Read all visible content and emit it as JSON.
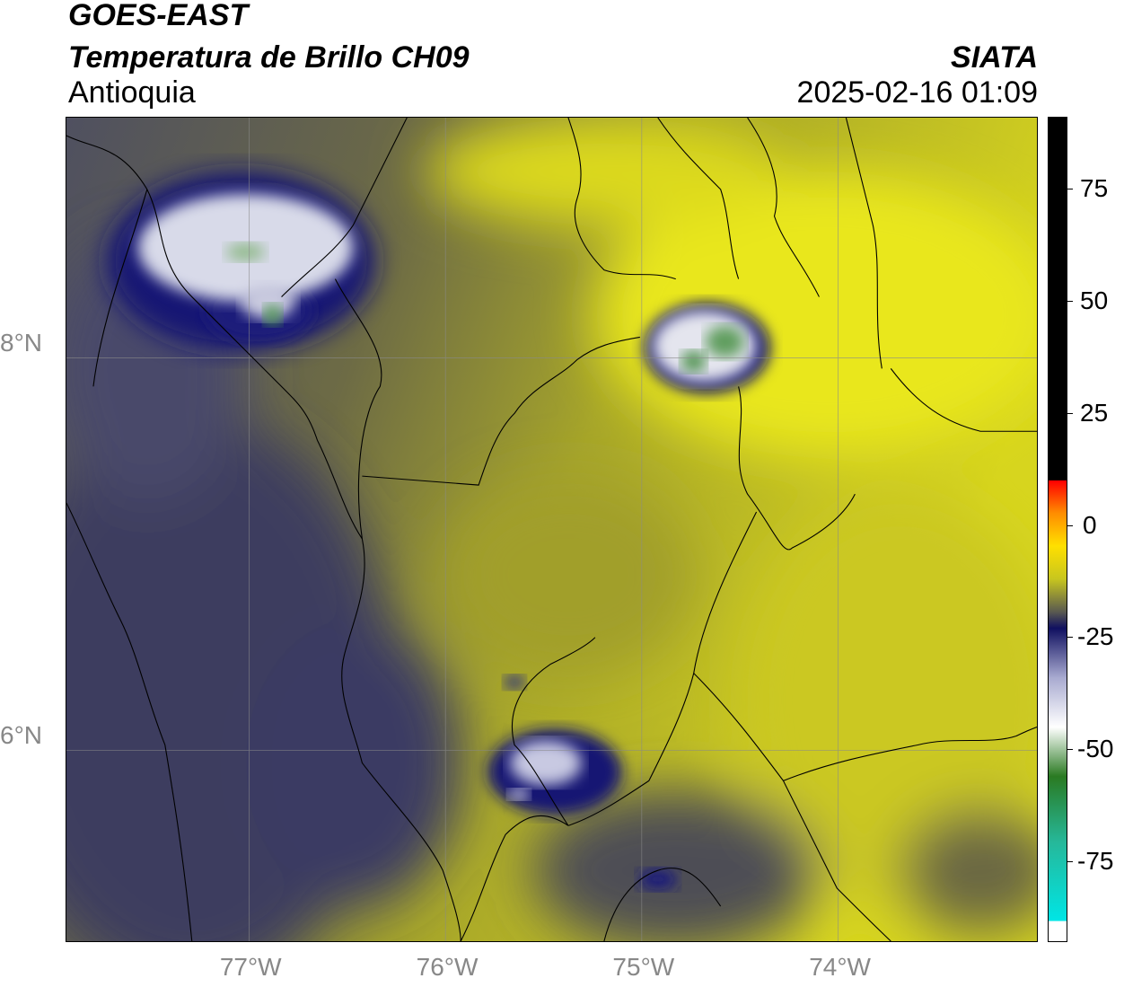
{
  "header": {
    "satellite": "GOES-EAST",
    "product": "Temperatura de Brillo CH09",
    "region": "Antioquia",
    "organization": "SIATA",
    "timestamp": "2025-02-16 01:09"
  },
  "map": {
    "lon_range": [
      -77.95,
      -73.0
    ],
    "lat_range": [
      4.95,
      9.15
    ],
    "lon_ticks": [
      {
        "value": -77,
        "label": "77°W"
      },
      {
        "value": -76,
        "label": "76°W"
      },
      {
        "value": -75,
        "label": "75°W"
      },
      {
        "value": -74,
        "label": "74°W"
      }
    ],
    "lat_ticks": [
      {
        "value": 8,
        "label": "8°N"
      },
      {
        "value": 6,
        "label": "6°N"
      }
    ],
    "gridlines": true,
    "cloud_systems": [
      {
        "name": "cloud-cluster-uraba",
        "lon": -77.1,
        "lat": 8.5,
        "min_temp": -60
      },
      {
        "name": "cloud-cluster-bolivar",
        "lon": -74.65,
        "lat": 8.05,
        "min_temp": -62
      },
      {
        "name": "cloud-cluster-southwest",
        "lon": -75.5,
        "lat": 5.9,
        "min_temp": -50
      }
    ]
  },
  "colorbar": {
    "range": [
      -93,
      91
    ],
    "ticks": [
      {
        "value": 75,
        "label": "75"
      },
      {
        "value": 50,
        "label": "50"
      },
      {
        "value": 25,
        "label": "25"
      },
      {
        "value": 0,
        "label": "0"
      },
      {
        "value": -25,
        "label": "-25"
      },
      {
        "value": -50,
        "label": "-50"
      },
      {
        "value": -75,
        "label": "-75"
      }
    ]
  }
}
